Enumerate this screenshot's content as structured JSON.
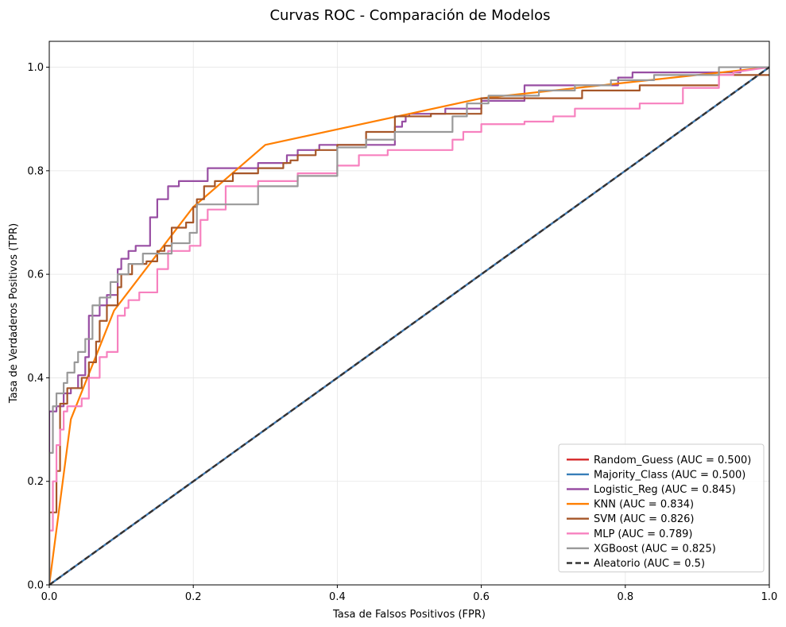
{
  "chart_data": {
    "type": "line",
    "title": "Curvas ROC - Comparación de Modelos",
    "xlabel": "Tasa de Falsos Positivos (FPR)",
    "ylabel": "Tasa de Verdaderos Positivos (TPR)",
    "xlim": [
      0,
      1
    ],
    "ylim": [
      0,
      1.05
    ],
    "xticks": [
      "0.0",
      "0.2",
      "0.4",
      "0.6",
      "0.8",
      "1.0"
    ],
    "yticks": [
      "0.0",
      "0.2",
      "0.4",
      "0.6",
      "0.8",
      "1.0"
    ],
    "grid": true,
    "legend_position": "lower-right",
    "series": [
      {
        "name": "Random_Guess (AUC = 0.500)",
        "color": "#d62728",
        "style": "solid",
        "x": [
          0,
          1
        ],
        "y": [
          0,
          1
        ]
      },
      {
        "name": "Majority_Class (AUC = 0.500)",
        "color": "#377eb8",
        "style": "solid",
        "x": [
          0,
          1
        ],
        "y": [
          0,
          1
        ]
      },
      {
        "name": "Logistic_Reg (AUC = 0.845)",
        "color": "#984ea3",
        "style": "solid",
        "x": [
          0,
          0,
          0.01,
          0.01,
          0.02,
          0.02,
          0.03,
          0.03,
          0.04,
          0.04,
          0.05,
          0.05,
          0.055,
          0.055,
          0.07,
          0.07,
          0.08,
          0.08,
          0.095,
          0.095,
          0.1,
          0.1,
          0.11,
          0.11,
          0.12,
          0.12,
          0.14,
          0.14,
          0.15,
          0.15,
          0.165,
          0.165,
          0.18,
          0.18,
          0.19,
          0.19,
          0.2,
          0.2,
          0.2,
          0.2,
          0.22,
          0.22,
          0.23,
          0.23,
          0.29,
          0.29,
          0.33,
          0.33,
          0.345,
          0.345,
          0.375,
          0.375,
          0.48,
          0.48,
          0.49,
          0.49,
          0.495,
          0.495,
          0.5,
          0.5,
          0.55,
          0.55,
          0.6,
          0.6,
          0.66,
          0.66,
          0.79,
          0.79,
          0.81,
          0.81,
          0.96,
          0.96,
          1.0
        ],
        "y": [
          0,
          0.335,
          0.335,
          0.345,
          0.345,
          0.37,
          0.37,
          0.38,
          0.38,
          0.405,
          0.405,
          0.44,
          0.44,
          0.52,
          0.52,
          0.54,
          0.54,
          0.56,
          0.56,
          0.61,
          0.61,
          0.63,
          0.63,
          0.645,
          0.645,
          0.655,
          0.655,
          0.71,
          0.71,
          0.745,
          0.745,
          0.77,
          0.77,
          0.78,
          0.78,
          0.78,
          0.78,
          0.78,
          0.78,
          0.78,
          0.78,
          0.805,
          0.805,
          0.805,
          0.805,
          0.815,
          0.815,
          0.83,
          0.83,
          0.84,
          0.84,
          0.85,
          0.85,
          0.885,
          0.885,
          0.895,
          0.895,
          0.905,
          0.905,
          0.91,
          0.91,
          0.92,
          0.92,
          0.935,
          0.935,
          0.965,
          0.965,
          0.98,
          0.98,
          0.99,
          0.99,
          1.0,
          1.0
        ]
      },
      {
        "name": "KNN (AUC = 0.834)",
        "color": "#ff7f00",
        "style": "solid",
        "x": [
          0,
          0.03,
          0.09,
          0.2,
          0.3,
          0.6,
          1.0
        ],
        "y": [
          0,
          0.32,
          0.53,
          0.73,
          0.85,
          0.94,
          1.0
        ]
      },
      {
        "name": "SVM (AUC = 0.826)",
        "color": "#a65628",
        "style": "solid",
        "x": [
          0,
          0,
          0.01,
          0.01,
          0.015,
          0.015,
          0.025,
          0.025,
          0.045,
          0.045,
          0.055,
          0.055,
          0.065,
          0.065,
          0.07,
          0.07,
          0.08,
          0.08,
          0.095,
          0.095,
          0.1,
          0.1,
          0.115,
          0.115,
          0.135,
          0.135,
          0.15,
          0.15,
          0.16,
          0.16,
          0.17,
          0.17,
          0.19,
          0.19,
          0.2,
          0.2,
          0.205,
          0.205,
          0.215,
          0.215,
          0.23,
          0.23,
          0.255,
          0.255,
          0.29,
          0.29,
          0.325,
          0.325,
          0.335,
          0.335,
          0.345,
          0.345,
          0.37,
          0.37,
          0.4,
          0.4,
          0.44,
          0.44,
          0.48,
          0.48,
          0.53,
          0.53,
          0.6,
          0.6,
          0.74,
          0.74,
          0.82,
          0.82,
          0.93,
          0.93,
          1.0
        ],
        "y": [
          0,
          0.14,
          0.14,
          0.22,
          0.22,
          0.35,
          0.35,
          0.38,
          0.38,
          0.4,
          0.4,
          0.43,
          0.43,
          0.47,
          0.47,
          0.51,
          0.51,
          0.54,
          0.54,
          0.575,
          0.575,
          0.6,
          0.6,
          0.62,
          0.62,
          0.625,
          0.625,
          0.645,
          0.645,
          0.655,
          0.655,
          0.69,
          0.69,
          0.7,
          0.7,
          0.73,
          0.73,
          0.745,
          0.745,
          0.77,
          0.77,
          0.78,
          0.78,
          0.795,
          0.795,
          0.805,
          0.805,
          0.815,
          0.815,
          0.82,
          0.82,
          0.83,
          0.83,
          0.84,
          0.84,
          0.85,
          0.85,
          0.875,
          0.875,
          0.905,
          0.905,
          0.91,
          0.91,
          0.94,
          0.94,
          0.955,
          0.955,
          0.965,
          0.965,
          0.985,
          0.985
        ]
      },
      {
        "name": "MLP (AUC = 0.789)",
        "color": "#f781bf",
        "style": "solid",
        "x": [
          0,
          0,
          0.005,
          0.005,
          0.01,
          0.01,
          0.015,
          0.015,
          0.02,
          0.02,
          0.025,
          0.025,
          0.045,
          0.045,
          0.055,
          0.055,
          0.07,
          0.07,
          0.08,
          0.08,
          0.095,
          0.095,
          0.105,
          0.105,
          0.11,
          0.11,
          0.125,
          0.125,
          0.15,
          0.15,
          0.165,
          0.165,
          0.175,
          0.175,
          0.195,
          0.195,
          0.21,
          0.21,
          0.22,
          0.22,
          0.245,
          0.245,
          0.29,
          0.29,
          0.345,
          0.345,
          0.4,
          0.4,
          0.43,
          0.43,
          0.47,
          0.47,
          0.56,
          0.56,
          0.575,
          0.575,
          0.6,
          0.6,
          0.66,
          0.66,
          0.7,
          0.7,
          0.73,
          0.73,
          0.82,
          0.82,
          0.88,
          0.88,
          0.93,
          0.93,
          0.95,
          0.95,
          1.0
        ],
        "y": [
          0,
          0.105,
          0.105,
          0.2,
          0.2,
          0.27,
          0.27,
          0.3,
          0.3,
          0.335,
          0.335,
          0.345,
          0.345,
          0.36,
          0.36,
          0.4,
          0.4,
          0.44,
          0.44,
          0.45,
          0.45,
          0.52,
          0.52,
          0.535,
          0.535,
          0.55,
          0.55,
          0.565,
          0.565,
          0.61,
          0.61,
          0.645,
          0.645,
          0.645,
          0.645,
          0.655,
          0.655,
          0.705,
          0.705,
          0.725,
          0.725,
          0.77,
          0.77,
          0.78,
          0.78,
          0.795,
          0.795,
          0.81,
          0.81,
          0.83,
          0.83,
          0.84,
          0.84,
          0.86,
          0.86,
          0.875,
          0.875,
          0.89,
          0.89,
          0.895,
          0.895,
          0.905,
          0.905,
          0.92,
          0.92,
          0.93,
          0.93,
          0.96,
          0.96,
          0.985,
          0.985,
          0.99,
          1.0
        ]
      },
      {
        "name": "XGBoost (AUC = 0.825)",
        "color": "#999999",
        "style": "solid",
        "x": [
          0,
          0,
          0.005,
          0.005,
          0.01,
          0.01,
          0.02,
          0.02,
          0.025,
          0.025,
          0.035,
          0.035,
          0.04,
          0.04,
          0.05,
          0.05,
          0.06,
          0.06,
          0.07,
          0.07,
          0.085,
          0.085,
          0.095,
          0.095,
          0.11,
          0.11,
          0.13,
          0.13,
          0.17,
          0.17,
          0.195,
          0.195,
          0.205,
          0.205,
          0.29,
          0.29,
          0.345,
          0.345,
          0.4,
          0.4,
          0.44,
          0.44,
          0.48,
          0.48,
          0.56,
          0.56,
          0.58,
          0.58,
          0.61,
          0.61,
          0.68,
          0.68,
          0.73,
          0.73,
          0.78,
          0.78,
          0.84,
          0.84,
          0.93,
          0.93,
          1.0
        ],
        "y": [
          0,
          0.255,
          0.255,
          0.345,
          0.345,
          0.37,
          0.37,
          0.39,
          0.39,
          0.41,
          0.41,
          0.43,
          0.43,
          0.45,
          0.45,
          0.475,
          0.475,
          0.54,
          0.54,
          0.555,
          0.555,
          0.585,
          0.585,
          0.6,
          0.6,
          0.62,
          0.62,
          0.64,
          0.64,
          0.66,
          0.66,
          0.68,
          0.68,
          0.735,
          0.735,
          0.77,
          0.77,
          0.79,
          0.79,
          0.845,
          0.845,
          0.86,
          0.86,
          0.875,
          0.875,
          0.905,
          0.905,
          0.93,
          0.93,
          0.945,
          0.945,
          0.955,
          0.955,
          0.965,
          0.965,
          0.975,
          0.975,
          0.985,
          0.985,
          1.0,
          1.0
        ]
      },
      {
        "name": "Aleatorio (AUC = 0.5)",
        "color": "#333333",
        "style": "dashed",
        "x": [
          0,
          1
        ],
        "y": [
          0,
          1
        ]
      }
    ]
  }
}
